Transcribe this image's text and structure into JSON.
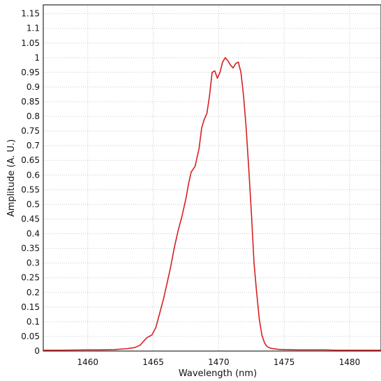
{
  "chart_data": {
    "type": "line",
    "title": "",
    "xlabel": "Wavelength (nm)",
    "ylabel": "Amplitude (A. U.)",
    "xlim": [
      1456.6,
      1482.4
    ],
    "ylim": [
      0,
      1.18
    ],
    "grid": true,
    "x_ticks": [
      1460,
      1465,
      1470,
      1475,
      1480
    ],
    "x_tick_labels": [
      "1460",
      "1465",
      "1470",
      "1475",
      "1480"
    ],
    "y_ticks": [
      0,
      0.05,
      0.1,
      0.15,
      0.2,
      0.25,
      0.3,
      0.35,
      0.4,
      0.45,
      0.5,
      0.55,
      0.6,
      0.65,
      0.7,
      0.75,
      0.8,
      0.85,
      0.9,
      0.95,
      1,
      1.05,
      1.1,
      1.15
    ],
    "y_tick_labels": [
      "0",
      "0.05",
      "0.1",
      "0.15",
      "0.2",
      "0.25",
      "0.3",
      "0.35",
      "0.4",
      "0.45",
      "0.5",
      "0.55",
      "0.6",
      "0.65",
      "0.7",
      "0.75",
      "0.8",
      "0.85",
      "0.9",
      "0.95",
      "1",
      "1.05",
      "1.1",
      "1.15"
    ],
    "series": [
      {
        "color": "#d62020",
        "x": [
          1456.6,
          1458,
          1460,
          1461,
          1462,
          1463,
          1463.6,
          1464.0,
          1464.2,
          1464.5,
          1464.9,
          1465.2,
          1465.5,
          1465.8,
          1466.0,
          1466.3,
          1466.6,
          1466.9,
          1467.2,
          1467.5,
          1467.7,
          1467.9,
          1468.2,
          1468.5,
          1468.7,
          1468.9,
          1469.1,
          1469.3,
          1469.5,
          1469.7,
          1469.9,
          1470.1,
          1470.3,
          1470.5,
          1470.7,
          1470.9,
          1471.1,
          1471.3,
          1471.5,
          1471.7,
          1471.9,
          1472.1,
          1472.3,
          1472.5,
          1472.7,
          1472.9,
          1473.1,
          1473.3,
          1473.5,
          1473.7,
          1474.0,
          1474.5,
          1475,
          1476,
          1477,
          1478,
          1479,
          1480,
          1481,
          1482.4
        ],
        "y": [
          0.003,
          0.003,
          0.004,
          0.004,
          0.005,
          0.008,
          0.012,
          0.02,
          0.03,
          0.045,
          0.055,
          0.08,
          0.13,
          0.18,
          0.22,
          0.28,
          0.35,
          0.41,
          0.46,
          0.52,
          0.57,
          0.61,
          0.63,
          0.69,
          0.76,
          0.79,
          0.81,
          0.87,
          0.95,
          0.955,
          0.93,
          0.95,
          0.985,
          1.0,
          0.99,
          0.975,
          0.965,
          0.98,
          0.985,
          0.95,
          0.87,
          0.76,
          0.62,
          0.47,
          0.3,
          0.2,
          0.11,
          0.055,
          0.028,
          0.015,
          0.009,
          0.006,
          0.005,
          0.004,
          0.004,
          0.004,
          0.003,
          0.003,
          0.003,
          0.003
        ]
      }
    ]
  }
}
